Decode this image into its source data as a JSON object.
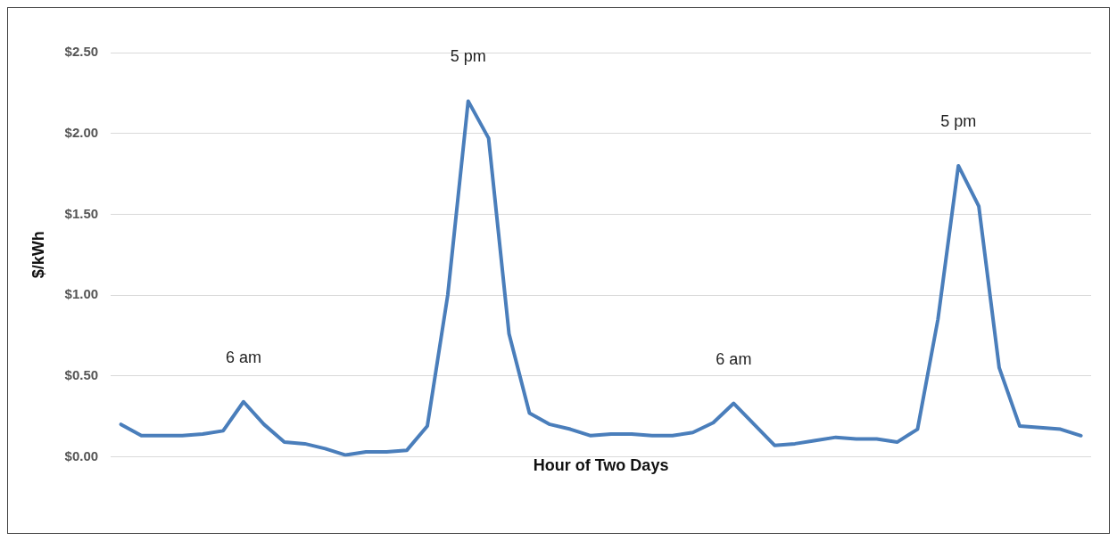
{
  "chart_data": {
    "type": "line",
    "xlabel": "Hour of Two Days",
    "ylabel": "$/kWh",
    "categories": [
      null,
      null,
      null,
      null,
      null,
      null,
      null,
      null,
      null,
      null,
      null,
      null,
      null,
      null,
      null,
      null,
      null,
      null,
      null,
      null,
      null,
      null,
      null,
      null,
      null,
      null,
      null,
      null,
      null,
      null,
      null,
      null,
      null,
      null,
      null,
      null,
      null,
      null,
      null,
      null,
      null,
      null,
      null,
      null,
      null,
      null,
      null,
      null
    ],
    "series": [
      {
        "color": "#4a7ebb",
        "values": [
          0.2,
          0.13,
          0.13,
          0.13,
          0.14,
          0.16,
          0.34,
          0.2,
          0.09,
          0.08,
          0.05,
          0.01,
          0.03,
          0.03,
          0.04,
          0.19,
          1.0,
          2.2,
          1.97,
          0.76,
          0.27,
          0.2,
          0.17,
          0.13,
          0.14,
          0.14,
          0.13,
          0.13,
          0.15,
          0.21,
          0.33,
          0.2,
          0.07,
          0.08,
          0.1,
          0.12,
          0.11,
          0.11,
          0.09,
          0.17,
          0.85,
          1.8,
          1.55,
          0.55,
          0.19,
          0.18,
          0.17,
          0.13
        ]
      }
    ],
    "ylim": [
      0,
      2.5
    ],
    "yticks": [
      {
        "value": 0,
        "label": "$0.00"
      },
      {
        "value": 0.5,
        "label": "$0.50"
      },
      {
        "value": 1,
        "label": "$1.00"
      },
      {
        "value": 1.5,
        "label": "$1.50"
      },
      {
        "value": 2,
        "label": "$2.00"
      },
      {
        "value": 2.5,
        "label": "$2.50"
      }
    ],
    "grid": "y",
    "legend": false,
    "marker": "none",
    "line_style": "solid",
    "tick_labels": "y",
    "annotations": [
      {
        "text": "6 am",
        "y": 0.34
      },
      {
        "text": "5 pm",
        "y": 2.2
      },
      {
        "text": "6 am",
        "y": 0.33
      },
      {
        "text": "5 pm",
        "y": 1.8
      }
    ]
  }
}
